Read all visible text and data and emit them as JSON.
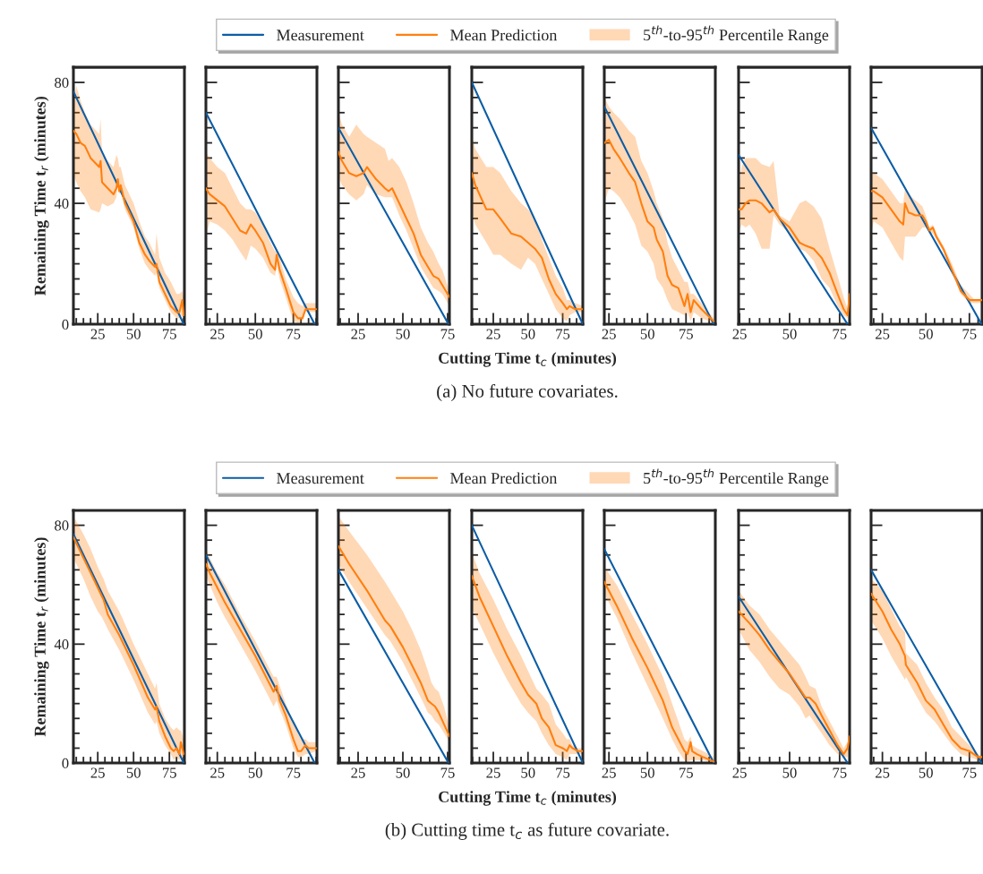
{
  "chart_data": [
    {
      "type": "line",
      "xlim": [
        8,
        85.5
      ],
      "xticks": [
        25,
        50,
        75
      ],
      "ylim": [
        0,
        85
      ],
      "yticks": [
        0,
        40,
        80
      ],
      "ylabel": "Remaining Time t$_{r}$ (minutes)",
      "legend": "top",
      "series": [
        {
          "name": "Measurement",
          "color": "#0c5da5",
          "x": [
            8,
            85
          ],
          "values": [
            77,
            0
          ]
        },
        {
          "name": "Mean Prediction",
          "color": "#ff7f0e",
          "x": [
            8,
            10,
            13,
            16,
            20,
            26,
            27,
            28,
            32,
            36,
            38,
            39,
            40,
            41,
            44,
            50,
            54,
            58,
            61,
            65,
            66,
            68,
            72,
            76,
            78,
            80,
            82,
            84,
            85
          ],
          "values": [
            64,
            63,
            60,
            59,
            55,
            52,
            54,
            47,
            45,
            43,
            45,
            48,
            44,
            46,
            40,
            34,
            27,
            23,
            21,
            19,
            20,
            14,
            10,
            6,
            5,
            4,
            4,
            8,
            3
          ],
          "lower": [
            50,
            47,
            44,
            42,
            38,
            37,
            38,
            40,
            39,
            40,
            42,
            46,
            43,
            44,
            38,
            32,
            25,
            20,
            18,
            16,
            17,
            12,
            8,
            4,
            3,
            2,
            2,
            3,
            1
          ],
          "upper": [
            72,
            79,
            74,
            70,
            66,
            63,
            68,
            56,
            54,
            52,
            56,
            55,
            52,
            52,
            46,
            40,
            34,
            29,
            27,
            23,
            30,
            22,
            17,
            14,
            12,
            10,
            10,
            11,
            9
          ]
        },
        {
          "name": "5$^{th}$-to-95$^{th}$ Percentile Range",
          "type": "area",
          "color": "#ffd8b6"
        }
      ]
    },
    {
      "type": "line",
      "xlim": [
        17.5,
        90.5
      ],
      "xticks": [
        25,
        50,
        75
      ],
      "ylim": [
        0,
        85
      ],
      "yticks": [
        0,
        40,
        80
      ],
      "tick_labels": "x",
      "series": [
        {
          "color": "#0c5da5",
          "x": [
            17.5,
            89
          ],
          "values": [
            70,
            0
          ]
        },
        {
          "color": "#ff7f0e",
          "x": [
            17.5,
            20,
            25,
            30,
            35,
            40,
            44,
            47,
            50,
            55,
            60,
            63,
            64,
            66,
            70,
            75,
            78,
            81,
            83,
            90
          ],
          "values": [
            45,
            43,
            41,
            39,
            35,
            31,
            30,
            33,
            31,
            27,
            20,
            18,
            23,
            18,
            12,
            4,
            2,
            2,
            5,
            5
          ],
          "lower": [
            29,
            34,
            33,
            31,
            28,
            24,
            21,
            26,
            25,
            22,
            17,
            16,
            20,
            15,
            9,
            1,
            0.5,
            1,
            4,
            4
          ],
          "upper": [
            57,
            55,
            52,
            50,
            45,
            40,
            38,
            38,
            37,
            33,
            27,
            24,
            25,
            22,
            15,
            9,
            7,
            6,
            7,
            7
          ]
        }
      ]
    },
    {
      "type": "line",
      "xlim": [
        14,
        76
      ],
      "xticks": [
        25,
        50,
        75
      ],
      "ylim": [
        0,
        85
      ],
      "yticks": [
        0,
        40,
        80
      ],
      "tick_labels": "x",
      "series": [
        {
          "color": "#0c5da5",
          "x": [
            14,
            75.5
          ],
          "values": [
            65,
            0
          ]
        },
        {
          "color": "#ff7f0e",
          "x": [
            14,
            16,
            20,
            24,
            28,
            30,
            35,
            40,
            42,
            44,
            48,
            52,
            56,
            60,
            64,
            67,
            70,
            72,
            76
          ],
          "values": [
            57,
            54,
            50,
            49,
            50,
            52,
            48,
            45,
            44,
            45,
            40,
            35,
            30,
            23,
            19,
            16,
            15,
            13,
            9
          ],
          "lower": [
            49,
            46,
            43,
            41,
            43,
            46,
            43,
            42,
            42,
            42,
            36,
            31,
            25,
            19,
            15,
            12,
            11,
            10,
            6
          ],
          "upper": [
            70,
            66,
            62,
            66,
            63,
            62,
            60,
            58,
            54,
            55,
            52,
            47,
            40,
            32,
            27,
            24,
            20,
            18,
            11
          ]
        }
      ]
    },
    {
      "type": "line",
      "xlim": [
        9.5,
        89.5
      ],
      "xticks": [
        25,
        50,
        75
      ],
      "ylim": [
        0,
        85
      ],
      "yticks": [
        0,
        40,
        80
      ],
      "tick_labels": "x",
      "xlabel": "Cutting Time t$_{c}$ (minutes)",
      "annotations": [
        "(a) No future covariates."
      ],
      "series": [
        {
          "color": "#0c5da5",
          "x": [
            9.5,
            89.5
          ],
          "values": [
            80,
            0
          ]
        },
        {
          "color": "#ff7f0e",
          "x": [
            9.5,
            12,
            20,
            25,
            30,
            38,
            45,
            50,
            55,
            60,
            65,
            70,
            75,
            78,
            80,
            84,
            89.5
          ],
          "values": [
            50,
            46,
            38,
            38,
            35,
            30,
            29,
            27,
            25,
            22,
            15,
            10,
            7,
            5,
            6,
            5,
            5
          ],
          "lower": [
            37,
            33,
            27,
            23,
            23,
            20,
            18,
            22,
            20,
            15,
            10,
            5,
            2,
            1,
            3,
            4,
            4
          ],
          "upper": [
            62,
            58,
            52,
            52,
            50,
            44,
            40,
            38,
            35,
            28,
            22,
            16,
            12,
            8,
            8,
            7,
            6
          ]
        }
      ]
    },
    {
      "type": "line",
      "xlim": [
        22,
        94
      ],
      "xticks": [
        25,
        50,
        75
      ],
      "ylim": [
        0,
        85
      ],
      "yticks": [
        0,
        40,
        80
      ],
      "tick_labels": "x",
      "series": [
        {
          "color": "#0c5da5",
          "x": [
            22,
            93
          ],
          "values": [
            72,
            0
          ]
        },
        {
          "color": "#ff7f0e",
          "x": [
            22,
            25,
            28,
            32,
            38,
            42,
            46,
            50,
            54,
            56,
            60,
            63,
            66,
            70,
            74,
            76,
            78,
            80,
            85,
            93
          ],
          "values": [
            60,
            61,
            58,
            55,
            50,
            47,
            40,
            34,
            32,
            28,
            24,
            16,
            13,
            12,
            6,
            10,
            4,
            8,
            5,
            1
          ],
          "lower": [
            40,
            45,
            44,
            42,
            37,
            33,
            26,
            24,
            20,
            15,
            12,
            8,
            5,
            4,
            3,
            4,
            1,
            4,
            2,
            0.5
          ],
          "upper": [
            75,
            72,
            70,
            68,
            64,
            62,
            54,
            50,
            44,
            40,
            35,
            27,
            22,
            18,
            14,
            14,
            10,
            10,
            7,
            2
          ]
        }
      ]
    },
    {
      "type": "line",
      "xlim": [
        24.5,
        80
      ],
      "xticks": [
        25,
        50,
        75
      ],
      "ylim": [
        0,
        85
      ],
      "yticks": [
        0,
        40,
        80
      ],
      "tick_labels": "x",
      "series": [
        {
          "color": "#0c5da5",
          "x": [
            24.5,
            79
          ],
          "values": [
            56,
            0
          ]
        },
        {
          "color": "#ff7f0e",
          "x": [
            24.5,
            26,
            28,
            30,
            33,
            36,
            40,
            42,
            45,
            50,
            55,
            58,
            62,
            66,
            70,
            74,
            77,
            79,
            80
          ],
          "values": [
            38,
            38,
            40,
            41,
            41,
            40,
            37,
            38,
            35,
            32,
            27,
            26,
            25,
            22,
            17,
            10,
            5,
            3,
            10
          ],
          "lower": [
            30,
            33,
            32,
            33,
            30,
            25,
            25,
            36,
            33,
            30,
            25,
            24,
            21,
            15,
            12,
            6,
            3,
            2,
            6
          ],
          "upper": [
            45,
            52,
            55,
            55,
            55,
            53,
            52,
            54,
            36,
            34,
            40,
            41,
            39,
            35,
            25,
            16,
            9,
            5,
            12
          ]
        }
      ]
    },
    {
      "type": "line",
      "xlim": [
        18.5,
        82.3
      ],
      "xticks": [
        25,
        50,
        75
      ],
      "ylim": [
        0,
        85
      ],
      "yticks": [
        0,
        40,
        80
      ],
      "tick_labels": "x",
      "series": [
        {
          "color": "#0c5da5",
          "x": [
            18.5,
            82
          ],
          "values": [
            65,
            0
          ]
        },
        {
          "color": "#ff7f0e",
          "x": [
            18.5,
            20,
            25,
            30,
            35,
            37,
            38,
            40,
            44,
            48,
            50,
            52,
            54,
            56,
            60,
            65,
            70,
            75,
            78,
            82.3
          ],
          "values": [
            44,
            44,
            42,
            38,
            34,
            33,
            40,
            37,
            36,
            36,
            34,
            31,
            32,
            29,
            25,
            18,
            11,
            8,
            8,
            8
          ],
          "lower": [
            30,
            34,
            32,
            27,
            22,
            21,
            29,
            29,
            29,
            32,
            32,
            30,
            30,
            28,
            24,
            17,
            10,
            7,
            7,
            7
          ],
          "upper": [
            50,
            50,
            48,
            44,
            40,
            40,
            45,
            43,
            41,
            39,
            36,
            32,
            33,
            30,
            26,
            20,
            13,
            10,
            8,
            8
          ]
        }
      ]
    },
    {
      "type": "line",
      "xlim": [
        8,
        85.5
      ],
      "xticks": [
        25,
        50,
        75
      ],
      "ylim": [
        0,
        85
      ],
      "yticks": [
        0,
        40,
        80
      ],
      "ylabel": "Remaining Time t$_{r}$ (minutes)",
      "legend": "top",
      "series": [
        {
          "name": "Measurement",
          "color": "#0c5da5",
          "x": [
            8,
            85
          ],
          "values": [
            77,
            0
          ]
        },
        {
          "name": "Mean Prediction",
          "color": "#ff7f0e",
          "x": [
            8,
            15,
            20,
            25,
            28,
            29,
            32,
            40,
            42,
            50,
            60,
            65,
            66,
            68,
            72,
            76,
            78,
            80,
            82,
            83,
            85
          ],
          "values": [
            76,
            69,
            64,
            59,
            56,
            55,
            50,
            43,
            41,
            33,
            22,
            18,
            19,
            14,
            9,
            5,
            4,
            5,
            3,
            7,
            3
          ],
          "lower": [
            69,
            62,
            56,
            51,
            49,
            48,
            45,
            38,
            36,
            28,
            17,
            13,
            14,
            10,
            6,
            3,
            1,
            2,
            1,
            2,
            1
          ],
          "upper": [
            83,
            77,
            72,
            66,
            63,
            62,
            58,
            51,
            49,
            40,
            30,
            25,
            27,
            20,
            15,
            12,
            11,
            12,
            11,
            11,
            8
          ]
        },
        {
          "name": "5$^{th}$-to-95$^{th}$ Percentile Range",
          "type": "area",
          "color": "#ffd8b6"
        }
      ]
    },
    {
      "type": "line",
      "xlim": [
        17.5,
        90.5
      ],
      "xticks": [
        25,
        50,
        75
      ],
      "ylim": [
        0,
        85
      ],
      "yticks": [
        0,
        40,
        80
      ],
      "tick_labels": "x",
      "series": [
        {
          "color": "#0c5da5",
          "x": [
            17.5,
            89
          ],
          "values": [
            70,
            0
          ]
        },
        {
          "color": "#ff7f0e",
          "x": [
            17.5,
            20,
            25,
            30,
            40,
            50,
            60,
            62,
            64,
            66,
            70,
            75,
            78,
            80,
            83,
            85,
            90
          ],
          "values": [
            67,
            64,
            59,
            54,
            45,
            36,
            26,
            24,
            26,
            21,
            16,
            8,
            4,
            4,
            6,
            5,
            5
          ],
          "lower": [
            63,
            60,
            54,
            49,
            40,
            31,
            21,
            19,
            21,
            18,
            13,
            5,
            2,
            2,
            3,
            3,
            4
          ],
          "upper": [
            72,
            69,
            64,
            60,
            50,
            41,
            31,
            29,
            29,
            26,
            20,
            14,
            10,
            8,
            8,
            7,
            7
          ]
        }
      ]
    },
    {
      "type": "line",
      "xlim": [
        14,
        76
      ],
      "xticks": [
        25,
        50,
        75
      ],
      "ylim": [
        0,
        85
      ],
      "yticks": [
        0,
        40,
        80
      ],
      "tick_labels": "x",
      "series": [
        {
          "color": "#0c5da5",
          "x": [
            14,
            75.5
          ],
          "values": [
            65,
            0
          ]
        },
        {
          "color": "#ff7f0e",
          "x": [
            14,
            20,
            30,
            40,
            43,
            50,
            55,
            60,
            64,
            66,
            68,
            70,
            73,
            76
          ],
          "values": [
            73,
            67,
            58,
            48,
            46,
            39,
            33,
            27,
            21,
            20,
            19,
            17,
            13,
            9
          ],
          "lower": [
            67,
            61,
            52,
            43,
            41,
            34,
            28,
            22,
            17,
            16,
            14,
            13,
            10,
            7
          ],
          "upper": [
            83,
            78,
            70,
            61,
            58,
            51,
            45,
            38,
            31,
            27,
            25,
            24,
            19,
            12
          ]
        }
      ]
    },
    {
      "type": "line",
      "xlim": [
        9.5,
        89.5
      ],
      "xticks": [
        25,
        50,
        75
      ],
      "ylim": [
        0,
        85
      ],
      "yticks": [
        0,
        40,
        80
      ],
      "tick_labels": "x",
      "xlabel": "Cutting Time t$_{c}$ (minutes)",
      "annotations": [
        "(b) Cutting time t$_{c}$ as future covariate."
      ],
      "series": [
        {
          "color": "#0c5da5",
          "x": [
            9.5,
            89.5
          ],
          "values": [
            80,
            0
          ]
        },
        {
          "color": "#ff7f0e",
          "x": [
            9.5,
            15,
            25,
            35,
            45,
            50,
            56,
            60,
            65,
            70,
            75,
            78,
            80,
            82,
            86,
            89.5
          ],
          "values": [
            63,
            56,
            46,
            36,
            27,
            23,
            20,
            15,
            12,
            6,
            5,
            4,
            6,
            5,
            4,
            4
          ],
          "lower": [
            52,
            47,
            37,
            28,
            20,
            17,
            14,
            10,
            6,
            3,
            2,
            1,
            3,
            3,
            3,
            3
          ],
          "upper": [
            71,
            64,
            55,
            45,
            36,
            31,
            25,
            23,
            20,
            13,
            10,
            8,
            8,
            6,
            5,
            5
          ]
        }
      ]
    },
    {
      "type": "line",
      "xlim": [
        22,
        94
      ],
      "xticks": [
        25,
        50,
        75
      ],
      "ylim": [
        0,
        85
      ],
      "yticks": [
        0,
        40,
        80
      ],
      "tick_labels": "x",
      "series": [
        {
          "color": "#0c5da5",
          "x": [
            22,
            93
          ],
          "values": [
            72,
            0
          ]
        },
        {
          "color": "#ff7f0e",
          "x": [
            22,
            30,
            40,
            50,
            60,
            66,
            70,
            74,
            76,
            78,
            79,
            82,
            86,
            93
          ],
          "values": [
            61,
            53,
            42,
            32,
            21,
            12,
            8,
            4,
            3,
            7,
            4,
            3,
            2,
            0.5
          ],
          "lower": [
            57,
            49,
            37,
            26,
            15,
            8,
            4,
            1,
            0.5,
            1,
            1,
            1,
            1,
            0
          ],
          "upper": [
            66,
            60,
            50,
            40,
            29,
            20,
            14,
            8,
            7,
            9,
            6,
            5,
            4,
            2
          ]
        }
      ]
    },
    {
      "type": "line",
      "xlim": [
        24.5,
        80
      ],
      "xticks": [
        25,
        50,
        75
      ],
      "ylim": [
        0,
        85
      ],
      "yticks": [
        0,
        40,
        80
      ],
      "tick_labels": "x",
      "series": [
        {
          "color": "#0c5da5",
          "x": [
            24.5,
            79
          ],
          "values": [
            56,
            0
          ]
        },
        {
          "color": "#ff7f0e",
          "x": [
            24.5,
            30,
            35,
            40,
            45,
            50,
            55,
            58,
            60,
            63,
            66,
            70,
            74,
            77,
            79,
            80
          ],
          "values": [
            51,
            47,
            43,
            38,
            34,
            30,
            25,
            22,
            22,
            20,
            16,
            11,
            6,
            3,
            5,
            9
          ],
          "lower": [
            45,
            38,
            34,
            29,
            25,
            23,
            19,
            15,
            16,
            13,
            10,
            6,
            3,
            2,
            2,
            7
          ],
          "upper": [
            58,
            53,
            50,
            45,
            41,
            37,
            33,
            29,
            26,
            25,
            19,
            14,
            9,
            5,
            7,
            11
          ]
        }
      ]
    },
    {
      "type": "line",
      "xlim": [
        18.5,
        82.3
      ],
      "xticks": [
        25,
        50,
        75
      ],
      "ylim": [
        0,
        85
      ],
      "yticks": [
        0,
        40,
        80
      ],
      "tick_labels": "x",
      "series": [
        {
          "color": "#0c5da5",
          "x": [
            18.5,
            82
          ],
          "values": [
            65,
            0
          ]
        },
        {
          "color": "#ff7f0e",
          "x": [
            18.5,
            25,
            30,
            35,
            38,
            38.5,
            45,
            50,
            55,
            60,
            65,
            70,
            75,
            80,
            82.3
          ],
          "values": [
            57,
            51,
            45,
            40,
            36,
            33,
            27,
            21,
            18,
            13,
            8,
            5,
            4,
            2,
            2
          ],
          "lower": [
            48,
            42,
            36,
            31,
            28,
            29,
            22,
            17,
            14,
            10,
            6,
            3,
            2,
            1,
            1
          ],
          "upper": [
            62,
            58,
            52,
            46,
            44,
            37,
            33,
            27,
            22,
            18,
            12,
            9,
            6,
            3,
            2
          ]
        }
      ]
    }
  ]
}
